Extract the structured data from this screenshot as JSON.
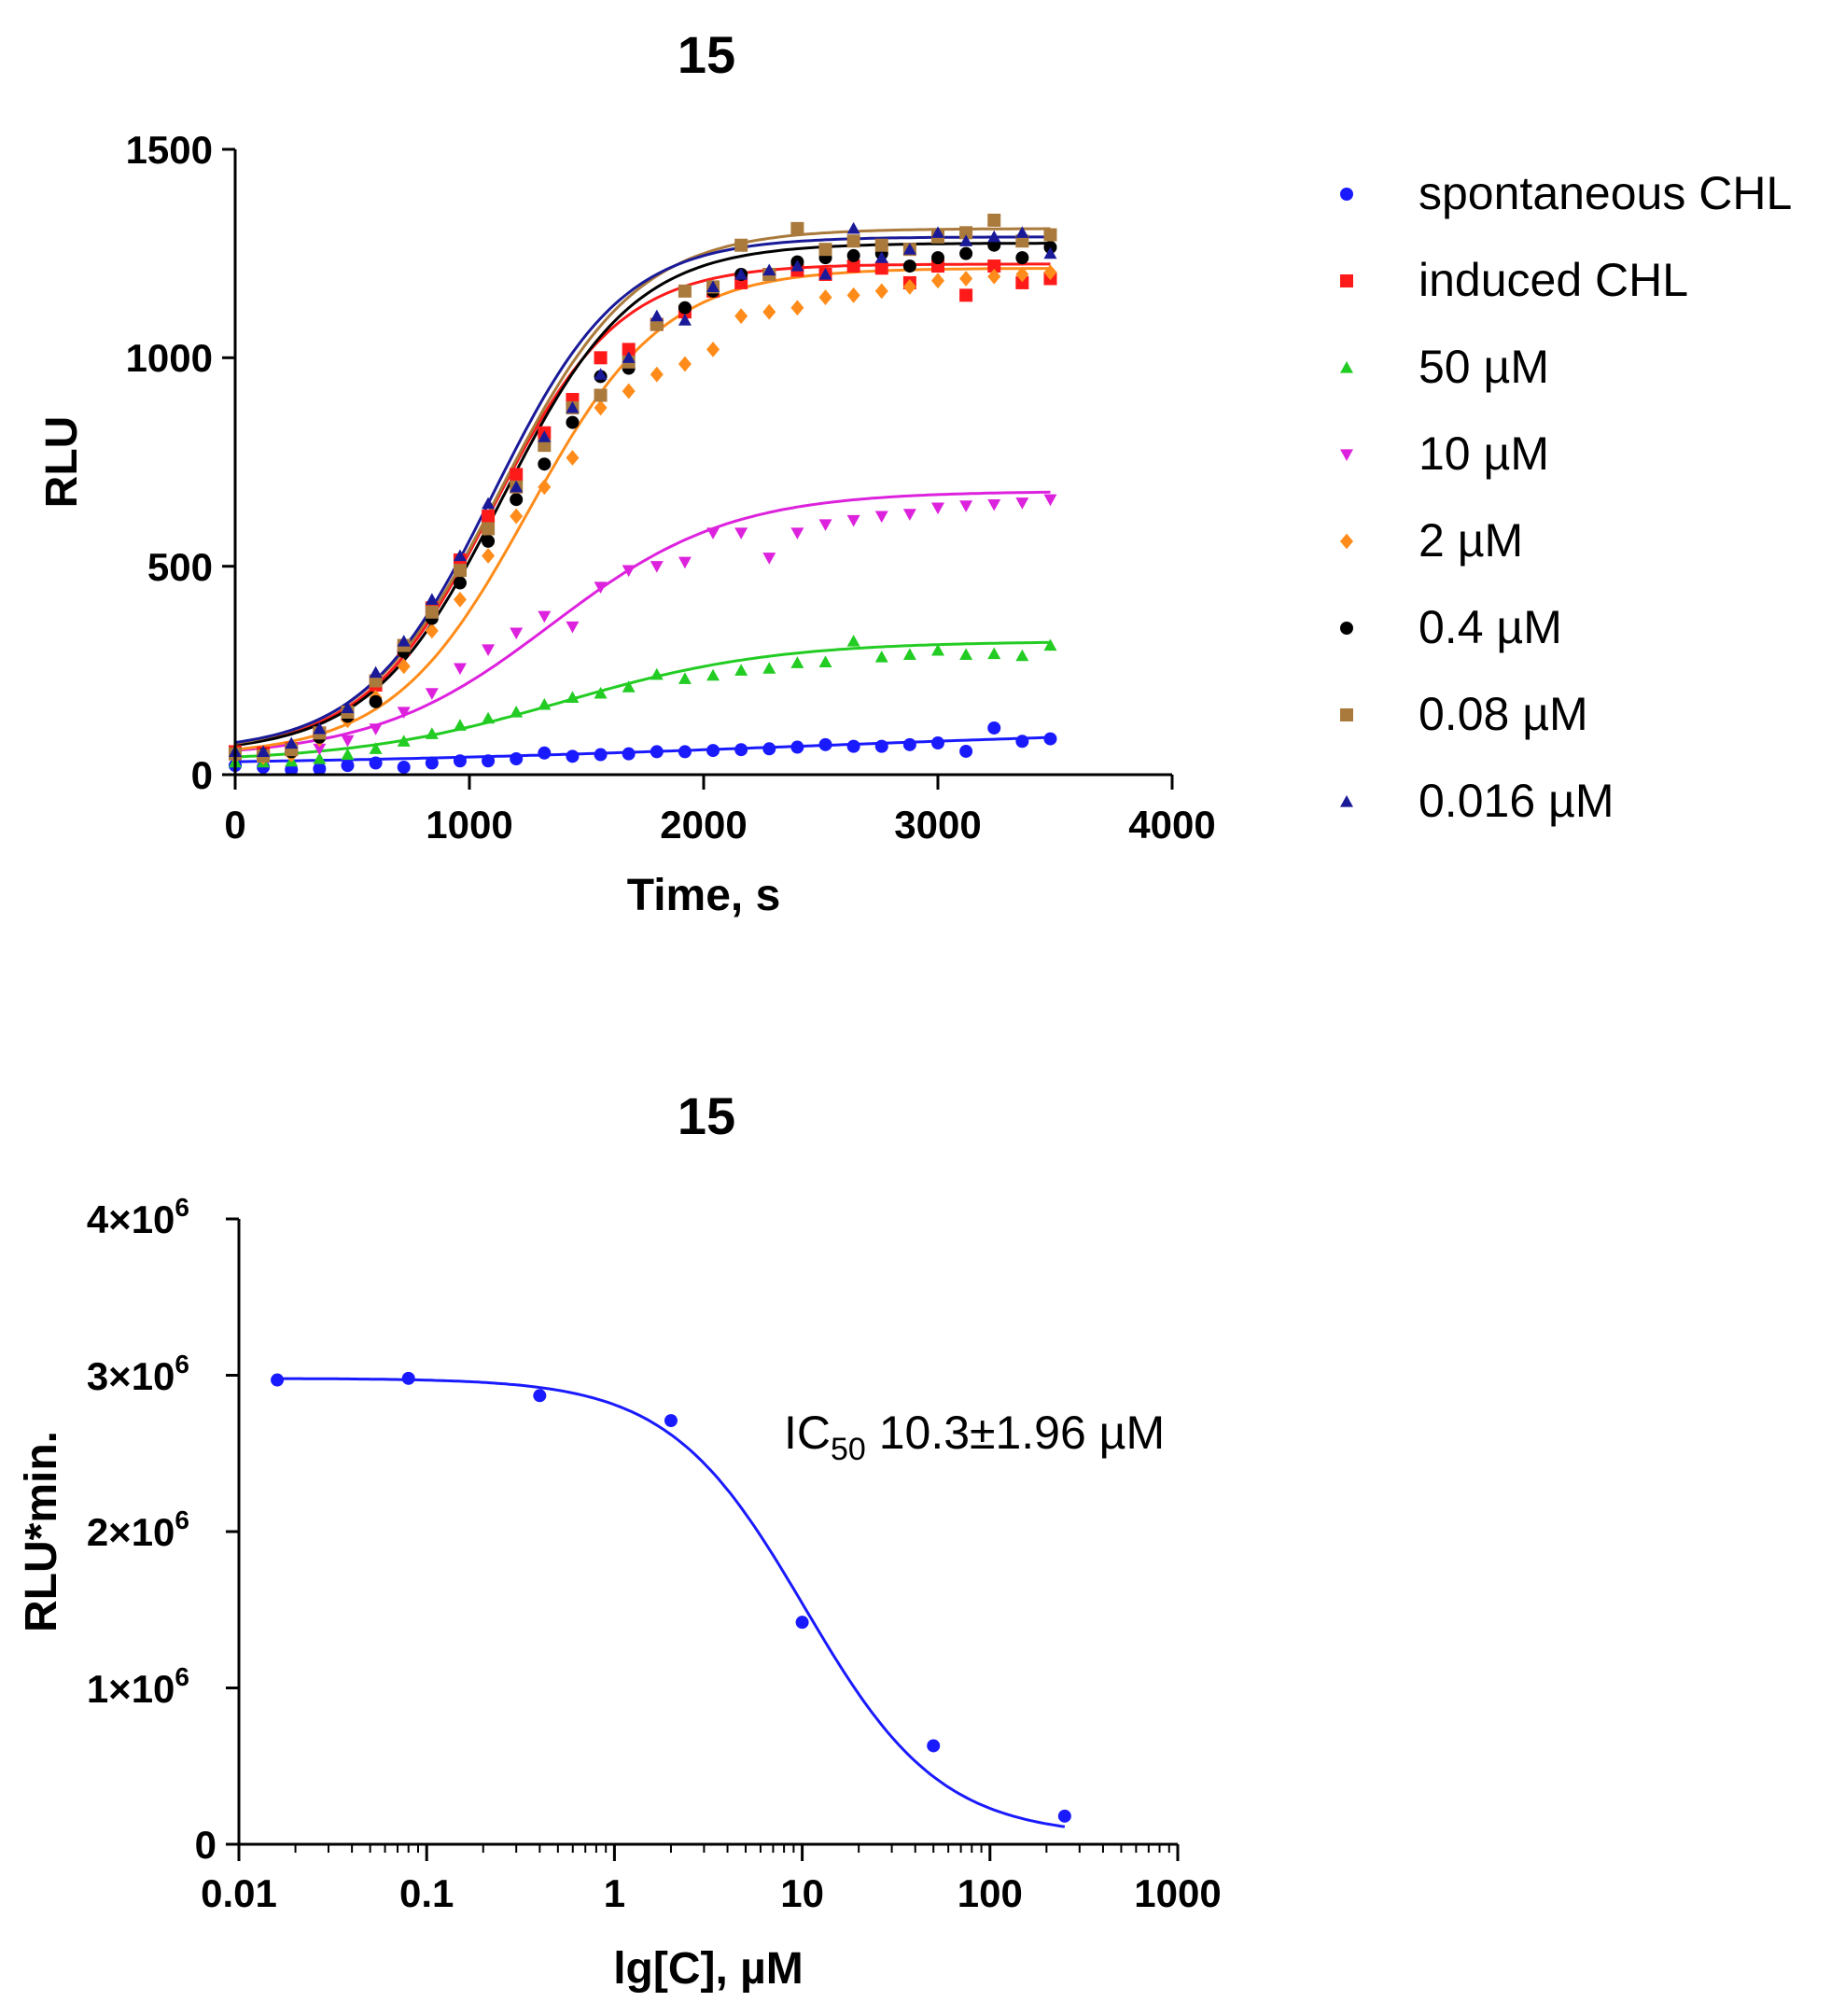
{
  "chart_data": [
    {
      "type": "scatter",
      "title": "15",
      "xlabel": "Time, s",
      "ylabel": "RLU",
      "xlim": [
        0,
        4000
      ],
      "ylim": [
        0,
        1500
      ],
      "xticks": [
        0,
        1000,
        2000,
        3000,
        4000
      ],
      "yticks": [
        0,
        500,
        1000,
        1500
      ],
      "x_tick_labels": [
        "0",
        "1000",
        "2000",
        "3000",
        "4000"
      ],
      "y_tick_labels": [
        "0",
        "500",
        "1000",
        "1500"
      ],
      "legend_position": "right",
      "series": [
        {
          "name": "spontaneous CHL",
          "color": "#1a1aff",
          "marker": "circle",
          "fit": {
            "base": 20,
            "top": 120,
            "t50": 2500,
            "k": 1200
          },
          "x": [
            0,
            120,
            240,
            360,
            480,
            600,
            720,
            840,
            960,
            1080,
            1200,
            1320,
            1440,
            1560,
            1680,
            1800,
            1920,
            2040,
            2160,
            2280,
            2400,
            2520,
            2640,
            2760,
            2880,
            3000,
            3120,
            3240,
            3360,
            3480
          ],
          "y": [
            22,
            18,
            12,
            14,
            22,
            28,
            18,
            28,
            33,
            33,
            38,
            52,
            44,
            48,
            50,
            55,
            55,
            58,
            60,
            62,
            66,
            72,
            68,
            68,
            72,
            76,
            56,
            112,
            80,
            86
          ]
        },
        {
          "name": "induced CHL",
          "color": "#ff1a1a",
          "marker": "square",
          "fit": {
            "base": 55,
            "top": 1225,
            "t50": 1100,
            "k": 270
          },
          "x": [
            0,
            120,
            240,
            360,
            480,
            600,
            720,
            840,
            960,
            1080,
            1200,
            1320,
            1440,
            1560,
            1680,
            1800,
            1920,
            2040,
            2160,
            2280,
            2400,
            2520,
            2640,
            2760,
            2880,
            3000,
            3120,
            3240,
            3360,
            3480
          ],
          "y": [
            55,
            52,
            62,
            100,
            145,
            215,
            300,
            400,
            515,
            620,
            720,
            820,
            900,
            1000,
            1020,
            1080,
            1110,
            1160,
            1180,
            1200,
            1210,
            1200,
            1220,
            1215,
            1180,
            1220,
            1150,
            1220,
            1180,
            1190
          ]
        },
        {
          "name": "50 µM",
          "color": "#22cc22",
          "marker": "triangle-up",
          "fit": {
            "base": 30,
            "top": 320,
            "t50": 1400,
            "k": 450
          },
          "x": [
            0,
            120,
            240,
            360,
            480,
            600,
            720,
            840,
            960,
            1080,
            1200,
            1320,
            1440,
            1560,
            1680,
            1800,
            1920,
            2040,
            2160,
            2280,
            2400,
            2520,
            2640,
            2760,
            2880,
            3000,
            3120,
            3240,
            3360,
            3480
          ],
          "y": [
            30,
            30,
            32,
            38,
            48,
            62,
            80,
            98,
            118,
            135,
            150,
            168,
            185,
            195,
            210,
            240,
            230,
            238,
            250,
            255,
            268,
            270,
            320,
            282,
            288,
            298,
            288,
            290,
            285,
            310
          ]
        },
        {
          "name": "10 µM",
          "color": "#dd22dd",
          "marker": "triangle-down",
          "fit": {
            "base": 40,
            "top": 680,
            "t50": 1350,
            "k": 380
          },
          "x": [
            0,
            120,
            240,
            360,
            480,
            600,
            720,
            840,
            960,
            1080,
            1200,
            1320,
            1440,
            1560,
            1680,
            1800,
            1920,
            2040,
            2160,
            2280,
            2400,
            2520,
            2640,
            2760,
            2880,
            3000,
            3120,
            3240,
            3360,
            3480
          ],
          "y": [
            40,
            42,
            48,
            62,
            82,
            110,
            150,
            195,
            255,
            300,
            340,
            380,
            355,
            450,
            490,
            500,
            510,
            580,
            580,
            520,
            580,
            600,
            610,
            620,
            625,
            640,
            645,
            648,
            652,
            660
          ]
        },
        {
          "name": "2 µM",
          "color": "#ff8c1a",
          "marker": "diamond",
          "fit": {
            "base": 45,
            "top": 1215,
            "t50": 1250,
            "k": 290
          },
          "x": [
            0,
            120,
            240,
            360,
            480,
            600,
            720,
            840,
            960,
            1080,
            1200,
            1320,
            1440,
            1560,
            1680,
            1800,
            1920,
            2040,
            2160,
            2280,
            2400,
            2520,
            2640,
            2760,
            2880,
            3000,
            3120,
            3240,
            3360,
            3480
          ],
          "y": [
            45,
            42,
            48,
            85,
            130,
            185,
            260,
            345,
            420,
            525,
            620,
            690,
            760,
            880,
            920,
            960,
            985,
            1020,
            1100,
            1110,
            1120,
            1145,
            1150,
            1160,
            1170,
            1185,
            1190,
            1195,
            1200,
            1205
          ]
        },
        {
          "name": "0.4 µM",
          "color": "#000000",
          "marker": "circle",
          "fit": {
            "base": 50,
            "top": 1275,
            "t50": 1140,
            "k": 280
          },
          "x": [
            0,
            120,
            240,
            360,
            480,
            600,
            720,
            840,
            960,
            1080,
            1200,
            1320,
            1440,
            1560,
            1680,
            1800,
            1920,
            2040,
            2160,
            2280,
            2400,
            2520,
            2640,
            2760,
            2880,
            3000,
            3120,
            3240,
            3360,
            3480
          ],
          "y": [
            50,
            48,
            55,
            90,
            140,
            175,
            295,
            375,
            460,
            560,
            660,
            745,
            845,
            955,
            975,
            1080,
            1120,
            1160,
            1200,
            1200,
            1230,
            1240,
            1245,
            1250,
            1220,
            1240,
            1250,
            1270,
            1240,
            1265
          ]
        },
        {
          "name": "0.08 µM",
          "color": "#aa7a3c",
          "marker": "square",
          "fit": {
            "base": 50,
            "top": 1310,
            "t50": 1130,
            "k": 290
          },
          "x": [
            0,
            120,
            240,
            360,
            480,
            600,
            720,
            840,
            960,
            1080,
            1200,
            1320,
            1440,
            1560,
            1680,
            1800,
            1920,
            2040,
            2160,
            2280,
            2400,
            2520,
            2640,
            2760,
            2880,
            3000,
            3120,
            3240,
            3360,
            3480
          ],
          "y": [
            50,
            45,
            60,
            100,
            150,
            225,
            310,
            390,
            490,
            590,
            690,
            790,
            880,
            910,
            990,
            1080,
            1160,
            1170,
            1270,
            1200,
            1310,
            1260,
            1280,
            1270,
            1260,
            1290,
            1300,
            1330,
            1280,
            1295
          ]
        },
        {
          "name": "0.016 µM",
          "color": "#1a1a99",
          "marker": "triangle-up",
          "fit": {
            "base": 55,
            "top": 1290,
            "t50": 1100,
            "k": 275
          },
          "x": [
            0,
            120,
            240,
            360,
            480,
            600,
            720,
            840,
            960,
            1080,
            1200,
            1320,
            1440,
            1560,
            1680,
            1800,
            1920,
            2040,
            2160,
            2280,
            2400,
            2520,
            2640,
            2760,
            2880,
            3000,
            3120,
            3240,
            3360,
            3480
          ],
          "y": [
            55,
            55,
            75,
            110,
            160,
            245,
            320,
            420,
            525,
            650,
            690,
            810,
            880,
            960,
            1000,
            1100,
            1090,
            1170,
            1200,
            1210,
            1220,
            1200,
            1310,
            1240,
            1260,
            1300,
            1280,
            1290,
            1300,
            1250
          ]
        }
      ]
    },
    {
      "type": "scatter",
      "title": "15",
      "xlabel": "lg[C], µM",
      "ylabel": "RLU*min.",
      "xscale": "log",
      "xlim": [
        0.01,
        1000
      ],
      "ylim": [
        0,
        4000000
      ],
      "x_tick_labels": [
        "0.01",
        "0.1",
        "1",
        "10",
        "100",
        "1000"
      ],
      "y_tick_labels": [
        "0",
        "1×10",
        "2×10",
        "3×10",
        "4×10"
      ],
      "y_tick_exponent": "6",
      "annotation": {
        "prefix": "IC",
        "subscript": "50",
        "text": " 10.3±1.96 µM"
      },
      "series": [
        {
          "name": "RLU*min.",
          "color": "#1a1aff",
          "marker": "circle",
          "fit": {
            "top": 2980000,
            "bottom": 50000,
            "ic50": 10.3,
            "hill": 1.2
          },
          "x": [
            0.016,
            0.08,
            0.4,
            2,
            10,
            50,
            250
          ],
          "y": [
            2970000,
            2980000,
            2870000,
            2710000,
            1420000,
            630000,
            180000
          ]
        }
      ]
    }
  ]
}
